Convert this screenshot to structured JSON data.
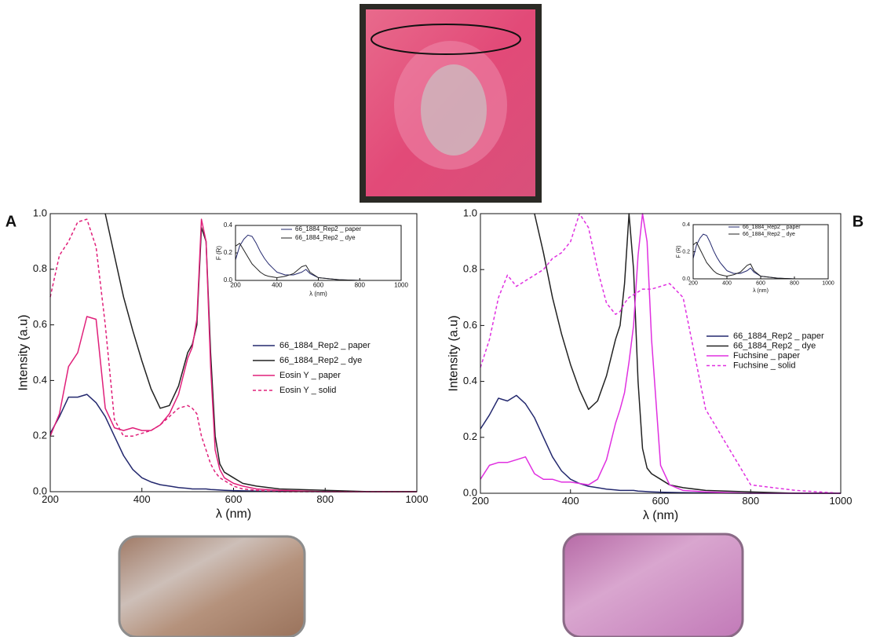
{
  "chart_data": [
    {
      "type": "line",
      "panel_label": "A",
      "ylabel": "Intensity (a.u)",
      "xlabel": "λ (nm)",
      "x": [
        200,
        220,
        240,
        260,
        280,
        300,
        320,
        340,
        360,
        380,
        400,
        420,
        440,
        460,
        480,
        500,
        510,
        520,
        530,
        540,
        550,
        560,
        570,
        580,
        600,
        620,
        650,
        700,
        800,
        900,
        1000
      ],
      "xlim": [
        200,
        1000
      ],
      "ylim": [
        0,
        1
      ],
      "xticks": [
        200,
        400,
        600,
        800,
        1000
      ],
      "yticks": [
        {
          "value": 0,
          "label": "0.0"
        },
        0.2,
        0.4,
        0.6,
        0.8,
        {
          "value": 1,
          "label": "1.0"
        }
      ],
      "series": [
        {
          "name": "66_1884_Rep2 _ paper",
          "color": "#23286e",
          "dashed": false,
          "values": [
            0.21,
            0.27,
            0.34,
            0.34,
            0.35,
            0.32,
            0.27,
            0.2,
            0.13,
            0.08,
            0.05,
            0.035,
            0.025,
            0.02,
            0.015,
            0.012,
            0.01,
            0.01,
            0.01,
            0.01,
            0.008,
            0.007,
            0.006,
            0.005,
            0.004,
            0.003,
            0.002,
            0.001,
            0,
            0,
            0
          ]
        },
        {
          "name": "66_1884_Rep2 _ dye",
          "color": "#222222",
          "dashed": false,
          "values": [
            null,
            null,
            null,
            null,
            null,
            null,
            1.0,
            0.85,
            0.7,
            0.58,
            0.47,
            0.37,
            0.3,
            0.31,
            0.38,
            0.5,
            0.53,
            0.6,
            0.95,
            0.9,
            0.5,
            0.2,
            0.1,
            0.07,
            0.05,
            0.03,
            0.02,
            0.01,
            0.005,
            0,
            0
          ]
        },
        {
          "name": "Eosin Y _ paper",
          "color": "#e0207a",
          "dashed": false,
          "values": [
            0.2,
            0.28,
            0.45,
            0.5,
            0.63,
            0.62,
            0.3,
            0.23,
            0.22,
            0.23,
            0.22,
            0.22,
            0.24,
            0.28,
            0.35,
            0.48,
            0.52,
            0.62,
            0.98,
            0.9,
            0.45,
            0.15,
            0.08,
            0.05,
            0.03,
            0.02,
            0.01,
            0.005,
            0,
            0,
            0
          ]
        },
        {
          "name": "Eosin Y _ solid",
          "color": "#e0207a",
          "dashed": true,
          "values": [
            0.7,
            0.85,
            0.9,
            0.97,
            0.98,
            0.88,
            0.6,
            0.26,
            0.2,
            0.2,
            0.21,
            0.22,
            0.24,
            0.27,
            0.3,
            0.31,
            0.3,
            0.28,
            0.2,
            0.15,
            0.1,
            0.07,
            0.05,
            0.04,
            0.02,
            0.01,
            0.005,
            0,
            0,
            0,
            0
          ]
        }
      ]
    },
    {
      "type": "line",
      "ylabel": "F (R)",
      "xlabel": "λ (nm)",
      "x": [
        200,
        220,
        240,
        260,
        280,
        300,
        320,
        340,
        360,
        380,
        400,
        440,
        480,
        520,
        540,
        560,
        600,
        700,
        800,
        1000
      ],
      "xlim": [
        200,
        1000
      ],
      "ylim": [
        0,
        0.4
      ],
      "xticks": [
        200,
        400,
        600,
        800,
        1000
      ],
      "yticks": [
        {
          "value": 0,
          "label": "0.0"
        },
        0.2,
        0.4
      ],
      "series": [
        {
          "name": "66_1884_Rep2 _ paper",
          "color": "#23286e",
          "dashed": false,
          "values": [
            0.15,
            0.25,
            0.3,
            0.33,
            0.32,
            0.27,
            0.21,
            0.16,
            0.12,
            0.09,
            0.06,
            0.04,
            0.04,
            0.06,
            0.08,
            0.05,
            0.02,
            0.005,
            0,
            0
          ]
        },
        {
          "name": "66_1884_Rep2 _ dye",
          "color": "#222222",
          "dashed": false,
          "values": [
            0.25,
            0.27,
            0.22,
            0.17,
            0.12,
            0.09,
            0.06,
            0.04,
            0.03,
            0.025,
            0.02,
            0.03,
            0.05,
            0.1,
            0.11,
            0.06,
            0.02,
            0.005,
            0,
            0
          ]
        }
      ]
    },
    {
      "type": "line",
      "panel_label": "B",
      "ylabel": "Intensity (a.u)",
      "xlabel": "λ (nm)",
      "x": [
        200,
        220,
        240,
        260,
        280,
        300,
        320,
        340,
        360,
        380,
        400,
        420,
        440,
        460,
        480,
        500,
        510,
        520,
        530,
        540,
        550,
        560,
        570,
        580,
        600,
        620,
        650,
        700,
        800,
        900,
        1000
      ],
      "xlim": [
        200,
        1000
      ],
      "ylim": [
        0,
        1
      ],
      "xticks": [
        200,
        400,
        600,
        800,
        1000
      ],
      "yticks": [
        {
          "value": 0,
          "label": "0.0"
        },
        0.2,
        0.4,
        0.6,
        0.8,
        {
          "value": 1,
          "label": "1.0"
        }
      ],
      "series": [
        {
          "name": "66_1884_Rep2 _ paper",
          "color": "#23286e",
          "dashed": false,
          "values": [
            0.23,
            0.28,
            0.34,
            0.33,
            0.35,
            0.32,
            0.27,
            0.2,
            0.13,
            0.08,
            0.05,
            0.035,
            0.025,
            0.02,
            0.015,
            0.012,
            0.01,
            0.01,
            0.01,
            0.01,
            0.008,
            0.007,
            0.006,
            0.005,
            0.004,
            0.003,
            0.002,
            0.001,
            0,
            0,
            0
          ]
        },
        {
          "name": "66_1884_Rep2 _ dye",
          "color": "#222222",
          "dashed": false,
          "values": [
            null,
            null,
            null,
            null,
            null,
            null,
            1.0,
            0.86,
            0.7,
            0.57,
            0.46,
            0.37,
            0.3,
            0.33,
            0.42,
            0.55,
            0.6,
            0.75,
            1.0,
            0.8,
            0.4,
            0.16,
            0.09,
            0.07,
            0.05,
            0.03,
            0.02,
            0.01,
            0.005,
            0,
            0
          ]
        },
        {
          "name": "Fuchsine _ paper",
          "color": "#e030e0",
          "dashed": false,
          "values": [
            0.05,
            0.1,
            0.11,
            0.11,
            0.12,
            0.13,
            0.07,
            0.05,
            0.05,
            0.04,
            0.04,
            0.035,
            0.03,
            0.05,
            0.12,
            0.25,
            0.3,
            0.36,
            0.47,
            0.6,
            0.85,
            1.0,
            0.9,
            0.55,
            0.1,
            0.03,
            0.01,
            0.005,
            0,
            0,
            0
          ]
        },
        {
          "name": "Fuchsine _ solid",
          "color": "#e030e0",
          "dashed": true,
          "values": [
            0.45,
            0.55,
            0.7,
            0.78,
            0.74,
            0.76,
            0.78,
            0.8,
            0.84,
            0.86,
            0.9,
            1.0,
            0.95,
            0.8,
            0.68,
            0.64,
            0.65,
            0.68,
            0.7,
            0.71,
            0.72,
            0.73,
            0.73,
            0.73,
            0.74,
            0.75,
            0.7,
            0.3,
            0.03,
            0.01,
            0
          ]
        }
      ]
    },
    {
      "type": "line",
      "ylabel": "F (R)",
      "xlabel": "λ (nm)",
      "x": [
        200,
        220,
        240,
        260,
        280,
        300,
        320,
        340,
        360,
        380,
        400,
        440,
        480,
        520,
        540,
        560,
        600,
        700,
        800,
        1000
      ],
      "xlim": [
        200,
        1000
      ],
      "ylim": [
        0,
        0.4
      ],
      "xticks": [
        200,
        400,
        600,
        800,
        1000
      ],
      "yticks": [
        {
          "value": 0,
          "label": "0.0"
        },
        0.2,
        0.4
      ],
      "series": [
        {
          "name": "66_1884_Rep2 _ paper",
          "color": "#23286e",
          "dashed": false,
          "values": [
            0.15,
            0.25,
            0.3,
            0.33,
            0.32,
            0.27,
            0.21,
            0.16,
            0.12,
            0.09,
            0.06,
            0.04,
            0.04,
            0.06,
            0.08,
            0.05,
            0.02,
            0.005,
            0,
            0
          ]
        },
        {
          "name": "66_1884_Rep2 _ dye",
          "color": "#222222",
          "dashed": false,
          "values": [
            0.25,
            0.27,
            0.22,
            0.17,
            0.12,
            0.09,
            0.06,
            0.04,
            0.03,
            0.025,
            0.02,
            0.03,
            0.05,
            0.1,
            0.11,
            0.06,
            0.02,
            0.005,
            0,
            0
          ]
        }
      ]
    }
  ]
}
